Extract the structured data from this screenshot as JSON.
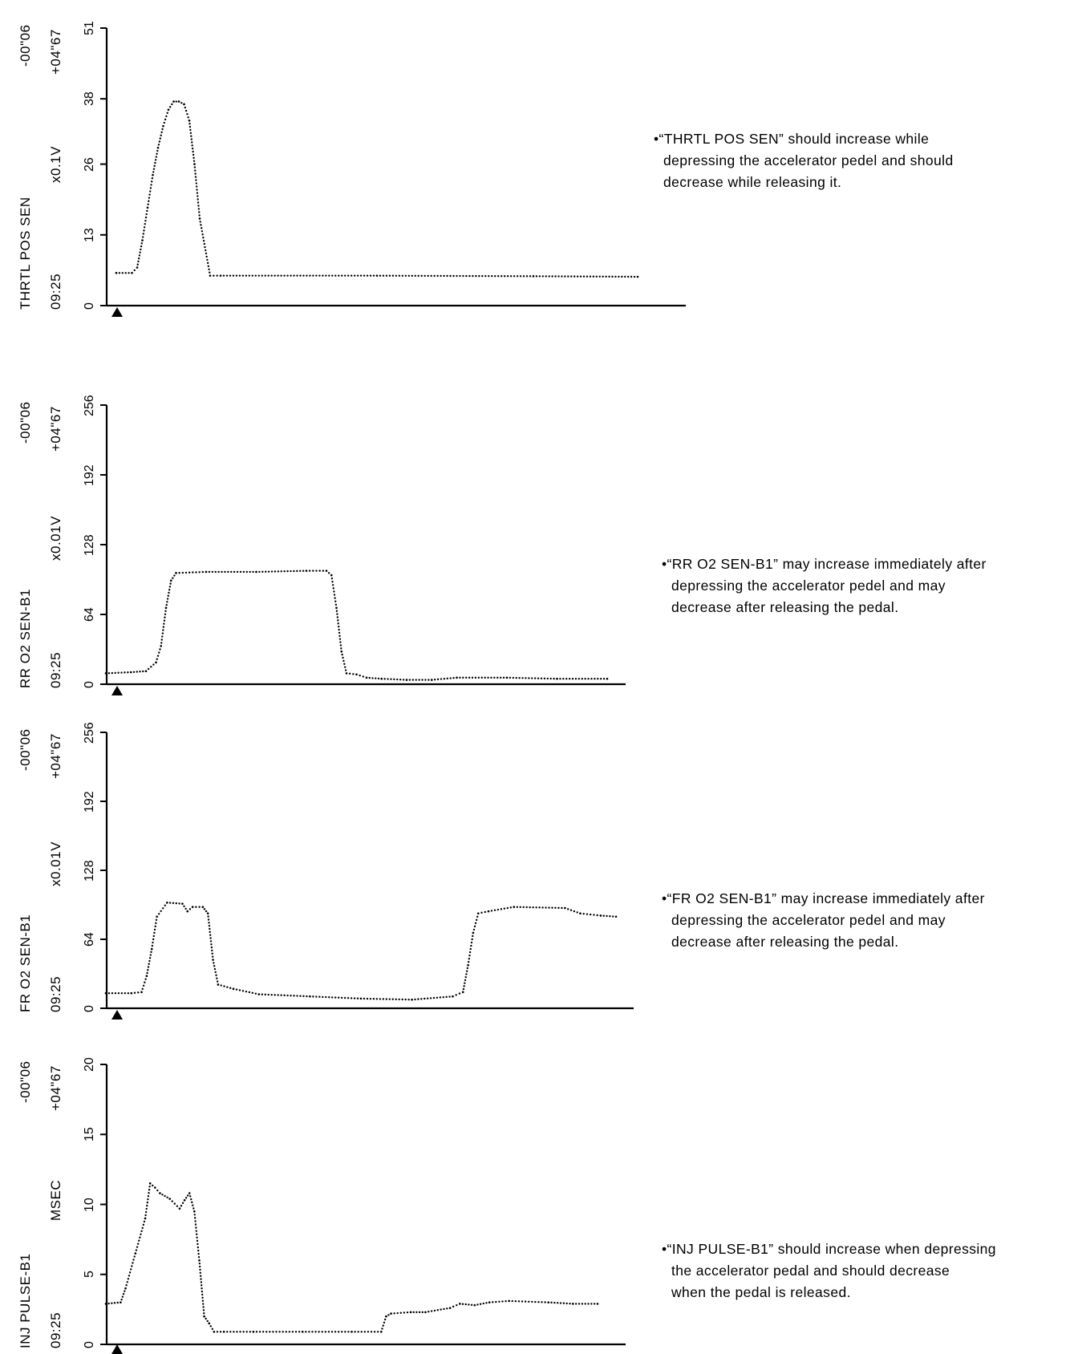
{
  "chart_data": [
    {
      "type": "line",
      "name": "THRTL POS SEN",
      "top_label": "-00\"06",
      "plus_label": "+04\"67",
      "time_label": "09:25",
      "unit": "x0.1V",
      "ylabel": "THRTL POS SEN",
      "ylim": [
        0,
        51
      ],
      "yticks": [
        "0",
        "13",
        "26",
        "38",
        "51"
      ],
      "ytick_values": [
        0,
        13,
        26,
        38,
        51
      ],
      "xlim": [
        0,
        100
      ],
      "series": [
        {
          "x": [
            0,
            3,
            4,
            5,
            6,
            7,
            8,
            9,
            10,
            11,
            12,
            13,
            14,
            15,
            16,
            18,
            20,
            50,
            80,
            100
          ],
          "values": [
            6,
            6,
            7,
            12,
            18,
            24,
            29,
            33,
            36,
            37.5,
            37.5,
            37,
            34,
            26,
            16,
            5.5,
            5.5,
            5.5,
            5.4,
            5.3
          ]
        }
      ],
      "note": [
        "•“THRTL POS SEN” should increase while",
        "depressing the accelerator pedel and should",
        "decrease while releasing it."
      ]
    },
    {
      "type": "line",
      "name": "RR O2 SEN-B1",
      "top_label": "-00\"06",
      "plus_label": "+04\"67",
      "time_label": "09:25",
      "unit": "x0.01V",
      "ylabel": "RR O2 SEN-B1",
      "ylim": [
        0,
        256
      ],
      "yticks": [
        "0",
        "64",
        "128",
        "192",
        "256"
      ],
      "ytick_values": [
        0,
        64,
        128,
        192,
        256
      ],
      "xlim": [
        0,
        100
      ],
      "series": [
        {
          "x": [
            0,
            5,
            8,
            10,
            11,
            12,
            13,
            14,
            20,
            30,
            40,
            44,
            45,
            46,
            47,
            48,
            50,
            52,
            55,
            60,
            65,
            70,
            80,
            90,
            100
          ],
          "values": [
            10,
            11,
            12,
            20,
            35,
            70,
            95,
            102,
            103,
            103,
            104,
            104,
            100,
            70,
            30,
            10,
            9,
            6,
            5,
            4,
            4,
            6,
            6,
            5,
            5
          ]
        }
      ],
      "note": [
        "•“RR O2 SEN-B1” may increase immediately after",
        "depressing the accelerator pedel and may",
        "decrease after releasing the pedal."
      ]
    },
    {
      "type": "line",
      "name": "FR O2 SEN-B1",
      "top_label": "-00\"06",
      "plus_label": "+04\"67",
      "time_label": "09:25",
      "unit": "x0.01V",
      "ylabel": "FR O2 SEN-B1",
      "ylim": [
        0,
        256
      ],
      "yticks": [
        "0",
        "64",
        "128",
        "192",
        "256"
      ],
      "ytick_values": [
        0,
        64,
        128,
        192,
        256
      ],
      "xlim": [
        0,
        100
      ],
      "series": [
        {
          "x": [
            0,
            5,
            7,
            8,
            9,
            10,
            12,
            15,
            16,
            17,
            19,
            20,
            21,
            22,
            25,
            30,
            40,
            50,
            60,
            68,
            70,
            71,
            72,
            73,
            75,
            80,
            90,
            93,
            97,
            100
          ],
          "values": [
            14,
            14,
            15,
            30,
            55,
            85,
            98,
            97,
            90,
            94,
            94,
            88,
            45,
            22,
            18,
            13,
            11,
            9,
            8,
            11,
            15,
            40,
            70,
            88,
            90,
            94,
            93,
            88,
            86,
            85
          ]
        }
      ],
      "note": [
        "•“FR O2 SEN-B1” may increase immediately after",
        "depressing the accelerator pedel and may",
        "decrease after releasing the pedal."
      ]
    },
    {
      "type": "line",
      "name": "INJ PULSE-B1",
      "top_label": "-00\"06",
      "plus_label": "+04\"67",
      "time_label": "09:25",
      "unit": "MSEC",
      "ylabel": "INJ PULSE-B1",
      "ylim": [
        0,
        20
      ],
      "yticks": [
        "0",
        "5",
        "10",
        "15",
        "20"
      ],
      "ytick_values": [
        0,
        5,
        10,
        15,
        20
      ],
      "xlim": [
        0,
        100
      ],
      "series": [
        {
          "x": [
            0,
            3,
            4,
            6,
            8,
            9,
            10,
            11,
            13,
            15,
            16,
            17,
            18,
            19,
            20,
            21,
            22,
            24,
            30,
            40,
            50,
            56,
            57,
            58,
            62,
            65,
            70,
            72,
            75,
            78,
            82,
            90,
            95,
            100
          ],
          "values": [
            2.9,
            3,
            4,
            6.5,
            9,
            11.5,
            11.2,
            10.8,
            10.4,
            9.7,
            10.3,
            10.8,
            9.5,
            6,
            2,
            1.5,
            0.9,
            0.9,
            0.9,
            0.9,
            0.9,
            0.9,
            2,
            2.2,
            2.3,
            2.3,
            2.6,
            2.9,
            2.8,
            3,
            3.1,
            3,
            2.9,
            2.9
          ]
        }
      ],
      "note": [
        "•“INJ PULSE-B1” should increase when depressing",
        "the accelerator pedal and should decrease",
        "when the pedal is released."
      ]
    }
  ]
}
